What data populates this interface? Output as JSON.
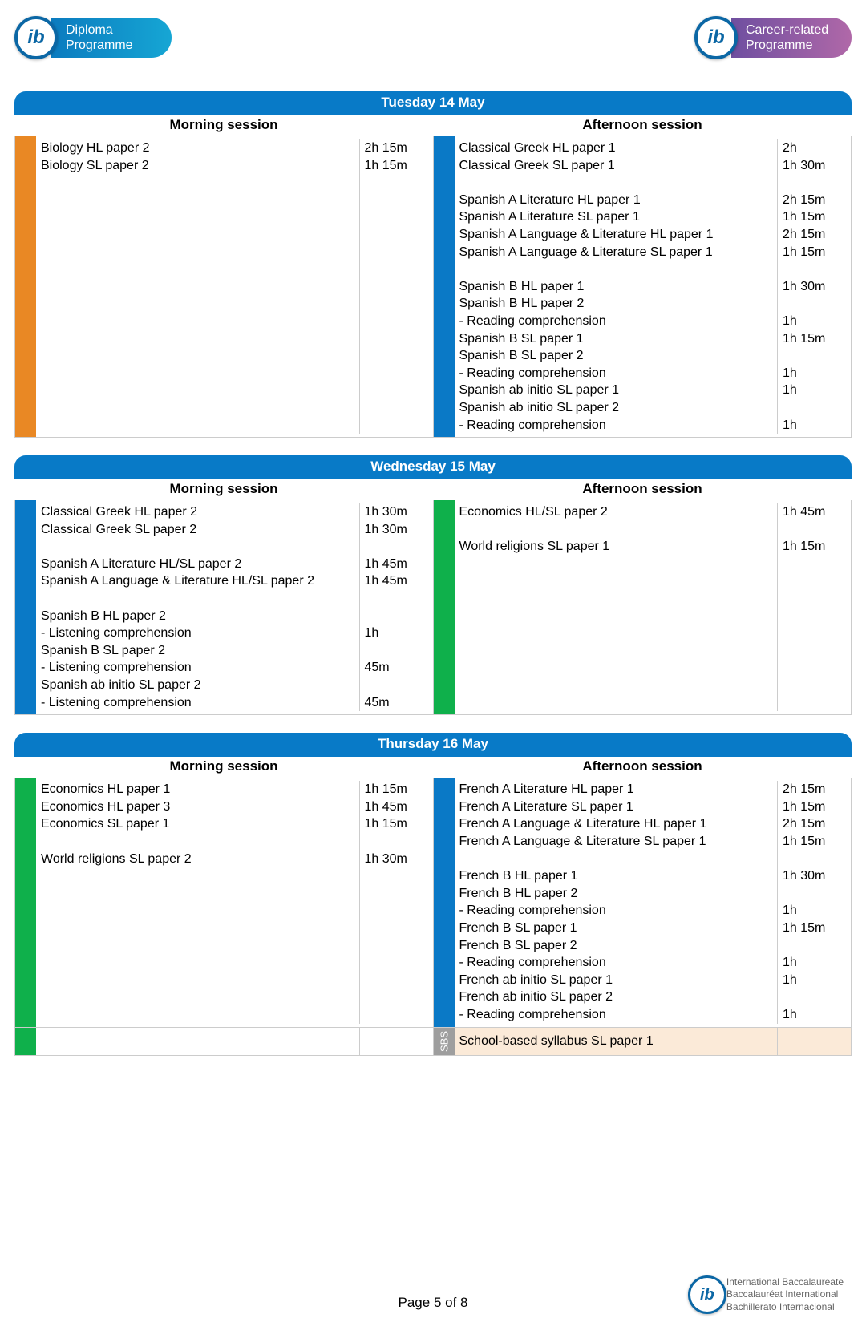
{
  "page": {
    "footer": "Page 5 of 8"
  },
  "colors": {
    "header_blue": "#087ac7",
    "orange": "#e98824",
    "blue": "#0a79c6",
    "green": "#0fb04b",
    "grey": "#9e9e9e",
    "sbs_bg": "#fbead8"
  },
  "logos": {
    "ib_glyph": "ib",
    "diploma_line1": "Diploma",
    "diploma_line2": "Programme",
    "career_line1": "Career-related",
    "career_line2": "Programme",
    "footer_l1": "International Baccalaureate",
    "footer_l2": "Baccalauréat International",
    "footer_l3": "Bachillerato Internacional"
  },
  "labels": {
    "morning": "Morning session",
    "afternoon": "Afternoon session",
    "sbs": "SBS"
  },
  "days": [
    {
      "title": "Tuesday 14 May",
      "morning": {
        "stripe": "#e98824",
        "rows": [
          {
            "name": "Biology HL paper 2",
            "dur": "2h 15m"
          },
          {
            "name": "Biology SL paper 2",
            "dur": "1h 15m"
          }
        ]
      },
      "afternoon": {
        "stripe": "#0a79c6",
        "rows": [
          {
            "name": "Classical Greek HL paper 1",
            "dur": "2h"
          },
          {
            "name": "Classical Greek SL paper 1",
            "dur": "1h 30m"
          },
          {
            "name": "",
            "dur": ""
          },
          {
            "name": "Spanish A Literature HL paper 1",
            "dur": "2h 15m"
          },
          {
            "name": "Spanish A Literature SL paper 1",
            "dur": "1h 15m"
          },
          {
            "name": "Spanish A Language & Literature HL paper 1",
            "dur": "2h 15m"
          },
          {
            "name": "Spanish A Language & Literature SL paper 1",
            "dur": "1h 15m"
          },
          {
            "name": "",
            "dur": ""
          },
          {
            "name": "Spanish B HL paper 1",
            "dur": "1h 30m"
          },
          {
            "name": "Spanish B HL paper 2",
            "dur": ""
          },
          {
            "name": "- Reading comprehension",
            "dur": "1h"
          },
          {
            "name": "Spanish B SL paper 1",
            "dur": "1h 15m"
          },
          {
            "name": "Spanish B SL paper 2",
            "dur": ""
          },
          {
            "name": "- Reading comprehension",
            "dur": "1h"
          },
          {
            "name": "Spanish ab initio SL paper 1",
            "dur": "1h"
          },
          {
            "name": "Spanish ab initio SL paper 2",
            "dur": ""
          },
          {
            "name": "- Reading comprehension",
            "dur": "1h"
          }
        ]
      }
    },
    {
      "title": "Wednesday 15 May",
      "morning": {
        "stripe": "#0a79c6",
        "rows": [
          {
            "name": "Classical Greek HL paper 2",
            "dur": "1h 30m"
          },
          {
            "name": "Classical Greek SL paper 2",
            "dur": "1h 30m"
          },
          {
            "name": "",
            "dur": ""
          },
          {
            "name": "Spanish A Literature HL/SL paper 2",
            "dur": "1h 45m"
          },
          {
            "name": "Spanish A Language & Literature HL/SL paper 2",
            "dur": "1h 45m"
          },
          {
            "name": "",
            "dur": ""
          },
          {
            "name": "Spanish B HL paper 2",
            "dur": ""
          },
          {
            "name": "- Listening comprehension",
            "dur": "1h"
          },
          {
            "name": "Spanish B SL paper 2",
            "dur": ""
          },
          {
            "name": "- Listening comprehension",
            "dur": "45m"
          },
          {
            "name": "Spanish ab initio SL paper 2",
            "dur": ""
          },
          {
            "name": "- Listening comprehension",
            "dur": "45m"
          }
        ]
      },
      "afternoon": {
        "stripe": "#0fb04b",
        "rows": [
          {
            "name": "Economics HL/SL paper 2",
            "dur": "1h 45m"
          },
          {
            "name": "",
            "dur": ""
          },
          {
            "name": "World religions SL paper 1",
            "dur": "1h 15m"
          }
        ]
      }
    },
    {
      "title": "Thursday 16 May",
      "morning": {
        "stripe": "#0fb04b",
        "rows": [
          {
            "name": "Economics HL paper 1",
            "dur": "1h 15m"
          },
          {
            "name": "Economics HL paper 3",
            "dur": "1h 45m"
          },
          {
            "name": "Economics SL paper 1",
            "dur": "1h 15m"
          },
          {
            "name": "",
            "dur": ""
          },
          {
            "name": "World religions SL paper 2",
            "dur": "1h 30m"
          }
        ]
      },
      "afternoon": {
        "stripe": "#0a79c6",
        "rows": [
          {
            "name": "French A Literature HL paper 1",
            "dur": "2h 15m"
          },
          {
            "name": "French A Literature SL paper 1",
            "dur": "1h 15m"
          },
          {
            "name": "French A Language & Literature HL paper 1",
            "dur": "2h 15m"
          },
          {
            "name": "French A Language & Literature SL paper 1",
            "dur": "1h 15m"
          },
          {
            "name": "",
            "dur": ""
          },
          {
            "name": "French B HL paper 1",
            "dur": "1h 30m"
          },
          {
            "name": "French B HL paper 2",
            "dur": ""
          },
          {
            "name": "- Reading comprehension",
            "dur": "1h"
          },
          {
            "name": "French B SL paper 1",
            "dur": "1h 15m"
          },
          {
            "name": "French B SL paper 2",
            "dur": ""
          },
          {
            "name": "- Reading comprehension",
            "dur": "1h"
          },
          {
            "name": "French ab initio SL paper 1",
            "dur": "1h"
          },
          {
            "name": "French ab initio SL paper 2",
            "dur": ""
          },
          {
            "name": "- Reading comprehension",
            "dur": "1h"
          }
        ],
        "sbs": {
          "exam": "School-based syllabus SL paper 1",
          "dur": ""
        }
      }
    }
  ]
}
